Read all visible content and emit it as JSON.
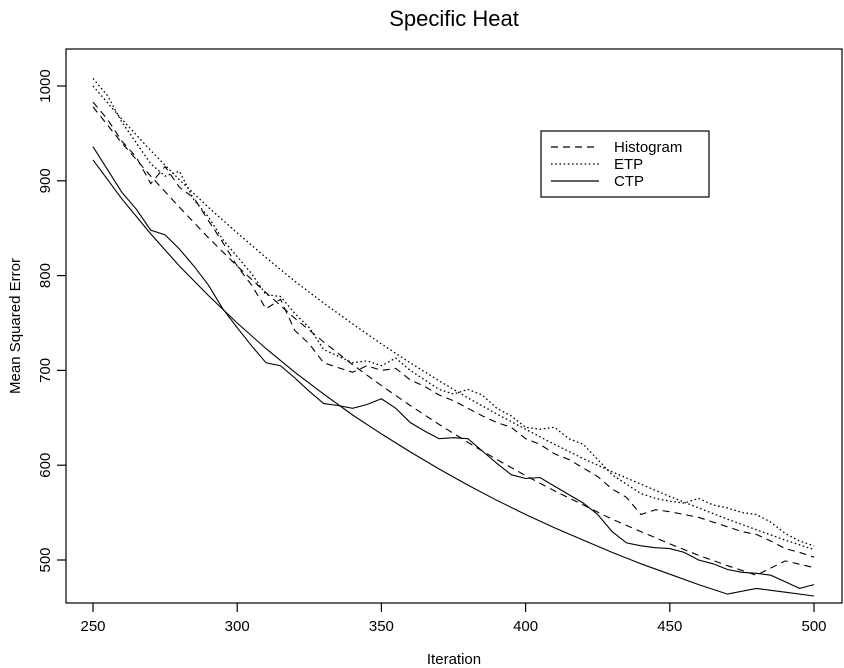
{
  "chart_data": {
    "type": "line",
    "title": "Specific Heat",
    "xlabel": "Iteration",
    "ylabel": "Mean Squared Error",
    "xlim": [
      250,
      500
    ],
    "ylim": [
      450,
      1020
    ],
    "xticks": [
      250,
      300,
      350,
      400,
      450,
      500
    ],
    "yticks": [
      500,
      600,
      700,
      800,
      900,
      1000
    ],
    "grid": false,
    "legend_position": "top-right",
    "legend": [
      {
        "name": "Histogram",
        "style": "dashed"
      },
      {
        "name": "ETP",
        "style": "dotted"
      },
      {
        "name": "CTP",
        "style": "solid"
      }
    ],
    "series": [
      {
        "name": "Histogram",
        "kind": "observed",
        "style": "dashed",
        "x": [
          250,
          255,
          260,
          265,
          270,
          275,
          280,
          285,
          290,
          295,
          300,
          305,
          310,
          315,
          320,
          325,
          330,
          335,
          340,
          345,
          350,
          355,
          360,
          365,
          370,
          375,
          380,
          385,
          390,
          395,
          400,
          405,
          410,
          415,
          420,
          425,
          430,
          435,
          440,
          445,
          450,
          455,
          460,
          465,
          470,
          475,
          480,
          485,
          490,
          495,
          500
        ],
        "values": [
          983,
          965,
          942,
          925,
          897,
          915,
          893,
          882,
          858,
          835,
          810,
          790,
          765,
          775,
          742,
          728,
          708,
          703,
          698,
          705,
          700,
          702,
          690,
          683,
          674,
          668,
          660,
          652,
          645,
          640,
          628,
          622,
          612,
          606,
          597,
          588,
          575,
          566,
          548,
          553,
          551,
          548,
          545,
          540,
          535,
          530,
          527,
          520,
          512,
          508,
          503
        ]
      },
      {
        "name": "ETP",
        "kind": "observed",
        "style": "dotted",
        "x": [
          250,
          255,
          260,
          265,
          270,
          275,
          280,
          285,
          290,
          295,
          300,
          305,
          310,
          315,
          320,
          325,
          330,
          335,
          340,
          345,
          350,
          355,
          360,
          365,
          370,
          375,
          380,
          385,
          390,
          395,
          400,
          405,
          410,
          415,
          420,
          425,
          430,
          435,
          440,
          445,
          450,
          455,
          460,
          465,
          470,
          475,
          480,
          485,
          490,
          495,
          500
        ],
        "values": [
          1008,
          990,
          962,
          940,
          918,
          905,
          910,
          880,
          862,
          838,
          820,
          802,
          780,
          778,
          760,
          745,
          722,
          715,
          708,
          710,
          705,
          713,
          700,
          690,
          680,
          675,
          680,
          674,
          660,
          652,
          640,
          638,
          640,
          628,
          622,
          606,
          590,
          580,
          570,
          565,
          562,
          560,
          565,
          558,
          555,
          550,
          548,
          540,
          528,
          520,
          515
        ]
      },
      {
        "name": "CTP",
        "kind": "observed",
        "style": "solid",
        "x": [
          250,
          255,
          260,
          265,
          270,
          275,
          280,
          285,
          290,
          295,
          300,
          305,
          310,
          315,
          320,
          325,
          330,
          335,
          340,
          345,
          350,
          355,
          360,
          365,
          370,
          375,
          380,
          385,
          390,
          395,
          400,
          405,
          410,
          415,
          420,
          425,
          430,
          435,
          440,
          445,
          450,
          455,
          460,
          465,
          470,
          475,
          480,
          485,
          490,
          495,
          500
        ],
        "values": [
          936,
          912,
          888,
          870,
          848,
          843,
          828,
          810,
          790,
          765,
          745,
          726,
          708,
          705,
          692,
          678,
          665,
          663,
          660,
          664,
          670,
          660,
          645,
          636,
          628,
          629,
          628,
          615,
          602,
          590,
          586,
          587,
          578,
          569,
          560,
          548,
          530,
          518,
          515,
          513,
          512,
          508,
          500,
          496,
          490,
          487,
          486,
          484,
          477,
          470,
          474
        ]
      },
      {
        "name": "Histogram",
        "kind": "fitted",
        "style": "dashed",
        "x": [
          250,
          260,
          270,
          280,
          290,
          300,
          310,
          320,
          330,
          340,
          350,
          360,
          370,
          380,
          390,
          400,
          410,
          420,
          430,
          440,
          450,
          460,
          470,
          480,
          490,
          500
        ],
        "values": [
          978,
          940,
          905,
          872,
          840,
          810,
          782,
          755,
          730,
          706,
          684,
          663,
          643,
          624,
          606,
          589,
          573,
          558,
          543,
          530,
          517,
          505,
          494,
          484,
          499,
          492
        ]
      },
      {
        "name": "ETP",
        "kind": "fitted",
        "style": "dotted",
        "x": [
          250,
          260,
          270,
          280,
          290,
          300,
          310,
          320,
          330,
          340,
          350,
          360,
          370,
          380,
          390,
          400,
          410,
          420,
          430,
          440,
          450,
          460,
          470,
          480,
          490,
          500
        ],
        "values": [
          1000,
          965,
          932,
          901,
          872,
          845,
          819,
          794,
          771,
          749,
          728,
          708,
          689,
          671,
          654,
          638,
          622,
          607,
          593,
          580,
          567,
          555,
          543,
          532,
          521,
          511
        ]
      },
      {
        "name": "CTP",
        "kind": "fitted",
        "style": "solid",
        "x": [
          250,
          260,
          270,
          280,
          290,
          300,
          310,
          320,
          330,
          340,
          350,
          360,
          370,
          380,
          390,
          400,
          410,
          420,
          430,
          440,
          450,
          460,
          470,
          480,
          490,
          500
        ],
        "values": [
          922,
          881,
          844,
          810,
          779,
          750,
          723,
          698,
          675,
          653,
          633,
          614,
          596,
          579,
          563,
          548,
          534,
          521,
          508,
          496,
          485,
          474,
          464,
          470,
          466,
          462
        ]
      }
    ]
  }
}
